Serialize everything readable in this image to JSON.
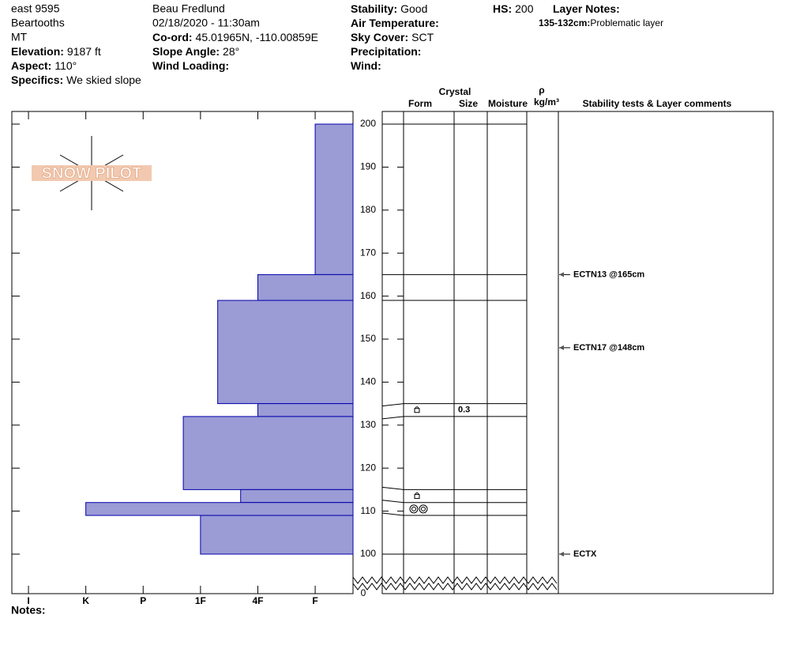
{
  "header": {
    "site": "east 9595",
    "range": "Beartooths",
    "state": "MT",
    "observer": "Beau  Fredlund",
    "datetime": "02/18/2020 - 11:30am",
    "fields": [
      {
        "label": "Elevation:",
        "value": "9187 ft"
      },
      {
        "label": "Aspect:",
        "value": "110°"
      },
      {
        "label": "Specifics:",
        "value": "We skied slope"
      },
      {
        "label": "Co-ord:",
        "value": "45.01965N, -110.00859E"
      },
      {
        "label": "Slope Angle:",
        "value": "28°"
      },
      {
        "label": "Wind Loading:"
      },
      {
        "label": "Stability:",
        "value": "Good"
      },
      {
        "label": "Air Temperature:"
      },
      {
        "label": "Sky Cover:",
        "value": "SCT"
      },
      {
        "label": "Precipitation:"
      },
      {
        "label": "Wind:"
      },
      {
        "label": "HS:",
        "value": 200
      },
      {
        "label": "Layer Notes:"
      }
    ],
    "layer_note": {
      "label": "135-132cm:",
      "value": "Problematic layer"
    }
  },
  "logo": "SNOW PILOT",
  "columns": {
    "crystal": "Crystal",
    "form": "Form",
    "size": "Size",
    "moisture": "Moisture",
    "rho": "ρ",
    "density_unit": "kg/m³",
    "comments": "Stability tests & Layer comments"
  },
  "chart_data": {
    "type": "bar",
    "top": [
      200,
      165,
      159,
      135,
      132,
      115,
      112,
      109
    ],
    "bottom": [
      165,
      159,
      135,
      132,
      115,
      112,
      109,
      100
    ],
    "values": [
      1,
      2,
      2.7,
      2,
      3.3,
      2.3,
      5,
      3
    ],
    "color": "#9b9bd6",
    "xlim": [
      0.34,
      6.29
    ],
    "xticks": [
      {
        "value": 6,
        "label": "I"
      },
      {
        "value": 5,
        "label": "K"
      },
      {
        "value": 4,
        "label": "P"
      },
      {
        "value": 3,
        "label": "1F"
      },
      {
        "value": 2,
        "label": "4F"
      },
      {
        "value": 1,
        "label": "F"
      }
    ],
    "ylim": [
      100,
      200
    ],
    "yticks": [
      100,
      110,
      120,
      130,
      140,
      150,
      160,
      170,
      180,
      190,
      200
    ],
    "ground": 0
  },
  "layer_details": [
    {
      "top": 135,
      "bottom": 132,
      "size": 0.3
    }
  ],
  "tests": [
    {
      "label": "ECTN13 @165cm",
      "depth": 165
    },
    {
      "label": "ECTN17 @148cm",
      "depth": 148
    },
    {
      "label": "ECTX",
      "depth": 100
    }
  ],
  "notes": "Notes:"
}
